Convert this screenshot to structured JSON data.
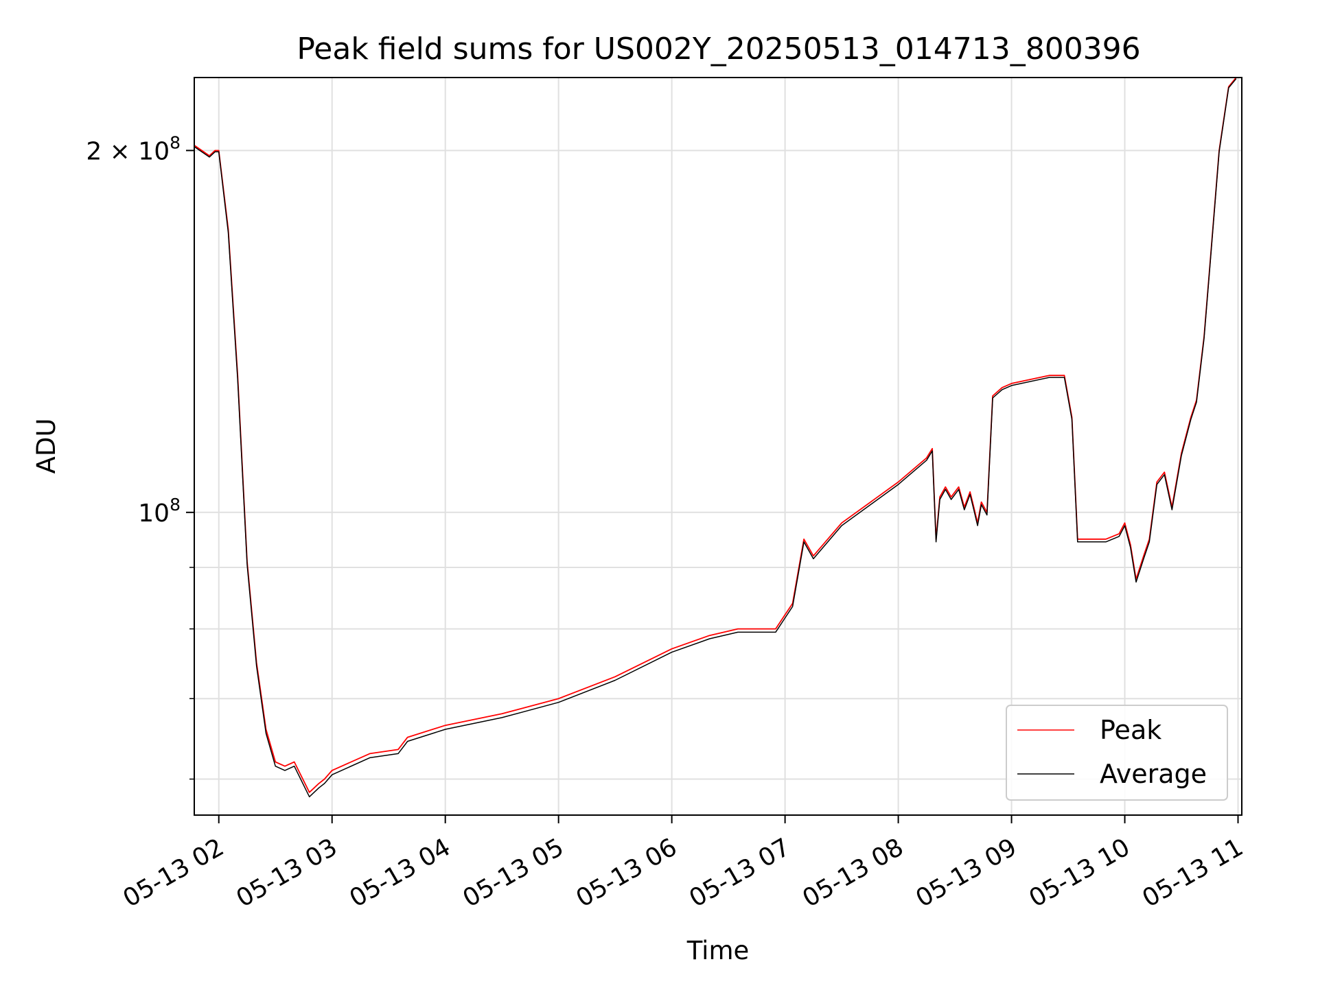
{
  "chart_data": {
    "type": "line",
    "title": "Peak field sums for US002Y_20250513_014713_800396",
    "xlabel": "Time",
    "ylabel": "ADU",
    "y_scale": "log",
    "ylim": [
      56000000,
      230000000
    ],
    "xlim": [
      "2025-05-13 01:47",
      "2025-05-13 11:02"
    ],
    "x_ticks": [
      "05-13 02",
      "05-13 03",
      "05-13 04",
      "05-13 05",
      "05-13 06",
      "05-13 07",
      "05-13 08",
      "05-13 09",
      "05-13 10",
      "05-13 11"
    ],
    "x_tick_times": [
      "2025-05-13 02:00",
      "2025-05-13 03:00",
      "2025-05-13 04:00",
      "2025-05-13 05:00",
      "2025-05-13 06:00",
      "2025-05-13 07:00",
      "2025-05-13 08:00",
      "2025-05-13 09:00",
      "2025-05-13 10:00",
      "2025-05-13 11:00"
    ],
    "y_ticks": [
      {
        "value": 100000000,
        "base": "10",
        "exp": "8",
        "mult": ""
      },
      {
        "value": 200000000,
        "base": "10",
        "exp": "8",
        "mult": "2 × "
      }
    ],
    "y_minor_ticks": [
      60000000,
      70000000,
      80000000,
      90000000
    ],
    "grid": true,
    "legend_position": "bottom-right",
    "series": [
      {
        "name": "Peak",
        "color": "#ff0000",
        "x": [
          "2025-05-13 01:47",
          "2025-05-13 01:55",
          "2025-05-13 01:58",
          "2025-05-13 02:00",
          "2025-05-13 02:05",
          "2025-05-13 02:10",
          "2025-05-13 02:15",
          "2025-05-13 02:20",
          "2025-05-13 02:25",
          "2025-05-13 02:30",
          "2025-05-13 02:35",
          "2025-05-13 02:40",
          "2025-05-13 02:48",
          "2025-05-13 02:53",
          "2025-05-13 02:56",
          "2025-05-13 03:00",
          "2025-05-13 03:20",
          "2025-05-13 03:35",
          "2025-05-13 03:40",
          "2025-05-13 04:00",
          "2025-05-13 04:30",
          "2025-05-13 05:00",
          "2025-05-13 05:30",
          "2025-05-13 06:00",
          "2025-05-13 06:20",
          "2025-05-13 06:35",
          "2025-05-13 06:50",
          "2025-05-13 06:55",
          "2025-05-13 07:04",
          "2025-05-13 07:10",
          "2025-05-13 07:15",
          "2025-05-13 07:30",
          "2025-05-13 08:00",
          "2025-05-13 08:15",
          "2025-05-13 08:18",
          "2025-05-13 08:20",
          "2025-05-13 08:22",
          "2025-05-13 08:25",
          "2025-05-13 08:28",
          "2025-05-13 08:32",
          "2025-05-13 08:35",
          "2025-05-13 08:38",
          "2025-05-13 08:40",
          "2025-05-13 08:42",
          "2025-05-13 08:44",
          "2025-05-13 08:47",
          "2025-05-13 08:50",
          "2025-05-13 08:55",
          "2025-05-13 09:00",
          "2025-05-13 09:20",
          "2025-05-13 09:28",
          "2025-05-13 09:32",
          "2025-05-13 09:35",
          "2025-05-13 09:40",
          "2025-05-13 09:50",
          "2025-05-13 09:57",
          "2025-05-13 10:00",
          "2025-05-13 10:03",
          "2025-05-13 10:06",
          "2025-05-13 10:10",
          "2025-05-13 10:13",
          "2025-05-13 10:17",
          "2025-05-13 10:21",
          "2025-05-13 10:25",
          "2025-05-13 10:30",
          "2025-05-13 10:35",
          "2025-05-13 10:38",
          "2025-05-13 10:42",
          "2025-05-13 10:45",
          "2025-05-13 10:50",
          "2025-05-13 10:55",
          "2025-05-13 10:59"
        ],
        "values": [
          202000000,
          198000000,
          200000000,
          200000000,
          172000000,
          130000000,
          91000000,
          75000000,
          66000000,
          62000000,
          61500000,
          62000000,
          58500000,
          59500000,
          60000000,
          61000000,
          63000000,
          63500000,
          65000000,
          66500000,
          68000000,
          70000000,
          73000000,
          77000000,
          79000000,
          80000000,
          80000000,
          80000000,
          84000000,
          95000000,
          92000000,
          98000000,
          106000000,
          111000000,
          113000000,
          95000000,
          103000000,
          105000000,
          103000000,
          105000000,
          101000000,
          104000000,
          101000000,
          98000000,
          102000000,
          100000000,
          125000000,
          127000000,
          128000000,
          130000000,
          130000000,
          120000000,
          95000000,
          95000000,
          95000000,
          96000000,
          98000000,
          94000000,
          88000000,
          92000000,
          95000000,
          106000000,
          108000000,
          101000000,
          112000000,
          120000000,
          124000000,
          140000000,
          160000000,
          200000000,
          226000000,
          230000000
        ]
      },
      {
        "name": "Average",
        "color": "#000000",
        "x": [
          "2025-05-13 01:47",
          "2025-05-13 01:55",
          "2025-05-13 01:58",
          "2025-05-13 02:00",
          "2025-05-13 02:05",
          "2025-05-13 02:10",
          "2025-05-13 02:15",
          "2025-05-13 02:20",
          "2025-05-13 02:25",
          "2025-05-13 02:30",
          "2025-05-13 02:35",
          "2025-05-13 02:40",
          "2025-05-13 02:48",
          "2025-05-13 02:53",
          "2025-05-13 02:56",
          "2025-05-13 03:00",
          "2025-05-13 03:20",
          "2025-05-13 03:35",
          "2025-05-13 03:40",
          "2025-05-13 04:00",
          "2025-05-13 04:30",
          "2025-05-13 05:00",
          "2025-05-13 05:30",
          "2025-05-13 06:00",
          "2025-05-13 06:20",
          "2025-05-13 06:35",
          "2025-05-13 06:50",
          "2025-05-13 06:55",
          "2025-05-13 07:04",
          "2025-05-13 07:10",
          "2025-05-13 07:15",
          "2025-05-13 07:30",
          "2025-05-13 08:00",
          "2025-05-13 08:15",
          "2025-05-13 08:18",
          "2025-05-13 08:20",
          "2025-05-13 08:22",
          "2025-05-13 08:25",
          "2025-05-13 08:28",
          "2025-05-13 08:32",
          "2025-05-13 08:35",
          "2025-05-13 08:38",
          "2025-05-13 08:40",
          "2025-05-13 08:42",
          "2025-05-13 08:44",
          "2025-05-13 08:47",
          "2025-05-13 08:50",
          "2025-05-13 08:55",
          "2025-05-13 09:00",
          "2025-05-13 09:20",
          "2025-05-13 09:28",
          "2025-05-13 09:32",
          "2025-05-13 09:35",
          "2025-05-13 09:40",
          "2025-05-13 09:50",
          "2025-05-13 09:57",
          "2025-05-13 10:00",
          "2025-05-13 10:03",
          "2025-05-13 10:06",
          "2025-05-13 10:10",
          "2025-05-13 10:13",
          "2025-05-13 10:17",
          "2025-05-13 10:21",
          "2025-05-13 10:25",
          "2025-05-13 10:30",
          "2025-05-13 10:35",
          "2025-05-13 10:38",
          "2025-05-13 10:42",
          "2025-05-13 10:45",
          "2025-05-13 10:50",
          "2025-05-13 10:55",
          "2025-05-13 10:59"
        ],
        "values": [
          201500000,
          197500000,
          199500000,
          199500000,
          171000000,
          129000000,
          90500000,
          74500000,
          65500000,
          61500000,
          61000000,
          61500000,
          58000000,
          59000000,
          59500000,
          60500000,
          62500000,
          63000000,
          64500000,
          66000000,
          67500000,
          69500000,
          72500000,
          76500000,
          78500000,
          79500000,
          79500000,
          79500000,
          83500000,
          94500000,
          91500000,
          97500000,
          105500000,
          110500000,
          112500000,
          94500000,
          102500000,
          104500000,
          102500000,
          104500000,
          100500000,
          103500000,
          100500000,
          97500000,
          101500000,
          99500000,
          124500000,
          126500000,
          127500000,
          129500000,
          129500000,
          119500000,
          94500000,
          94500000,
          94500000,
          95500000,
          97500000,
          93500000,
          87500000,
          91500000,
          94500000,
          105500000,
          107500000,
          100500000,
          111500000,
          119500000,
          123500000,
          139500000,
          159500000,
          199500000,
          225500000,
          229500000
        ]
      }
    ]
  }
}
